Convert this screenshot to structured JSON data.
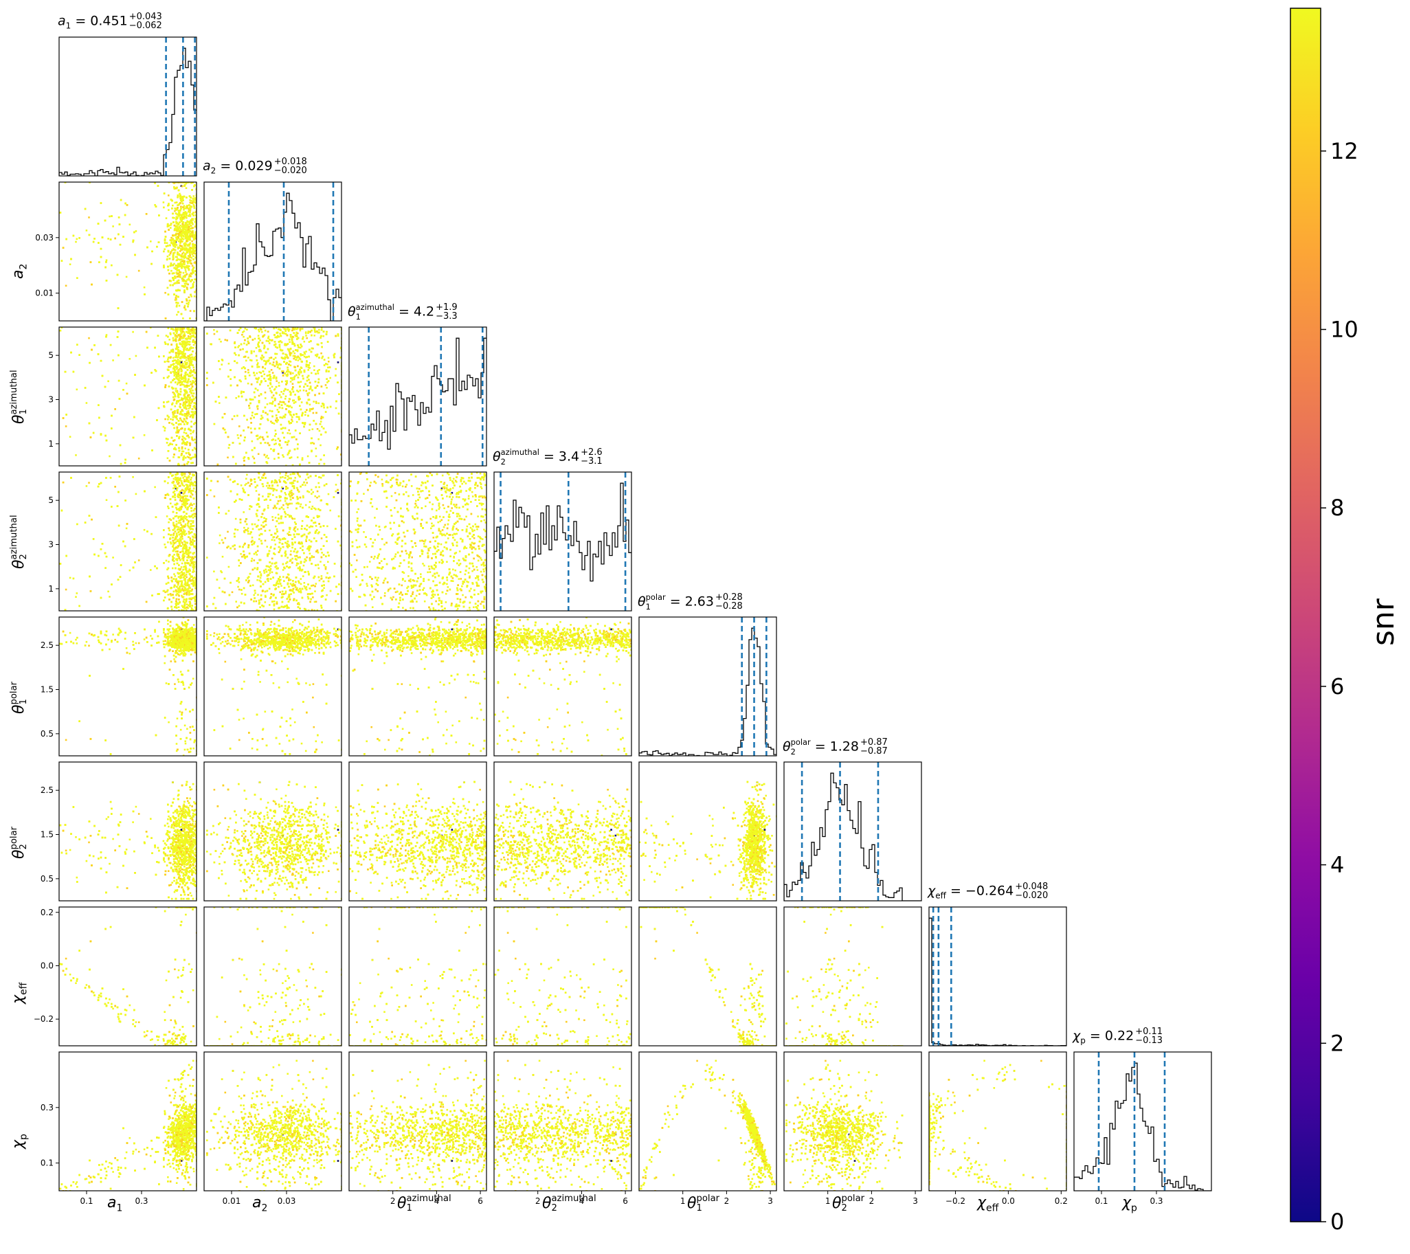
{
  "chart_data": {
    "type": "scatter",
    "layout": "corner-plot",
    "parameters": [
      {
        "key": "a1",
        "label": "a_1",
        "range": [
          0.0,
          0.5
        ],
        "ticks": [
          0.1,
          0.3
        ],
        "tick_labels": [
          "0.1",
          "0.3"
        ],
        "title": {
          "name": "a_1",
          "median": "0.451",
          "plus": "+0.043",
          "minus": "−0.062"
        },
        "quantiles": [
          0.389,
          0.451,
          0.494
        ]
      },
      {
        "key": "a2",
        "label": "a_2",
        "range": [
          0.0,
          0.05
        ],
        "ticks": [
          0.01,
          0.03
        ],
        "tick_labels": [
          "0.01",
          "0.03"
        ],
        "title": {
          "name": "a_2",
          "median": "0.029",
          "plus": "+0.018",
          "minus": "−0.020"
        },
        "quantiles": [
          0.009,
          0.029,
          0.047
        ]
      },
      {
        "key": "theta1_az",
        "label": "θ_1^azimuthal",
        "range": [
          0.0,
          6.28
        ],
        "ticks": [
          1,
          3,
          5
        ],
        "tick_labels": [
          "1",
          "3",
          "5"
        ],
        "x_ticks": [
          2,
          4,
          6
        ],
        "x_tick_labels": [
          "2",
          "4",
          "6"
        ],
        "title": {
          "name": "θ_1^azimuthal",
          "median": "4.2",
          "plus": "+1.9",
          "minus": "−3.3"
        },
        "quantiles": [
          0.9,
          4.2,
          6.1
        ]
      },
      {
        "key": "theta2_az",
        "label": "θ_2^azimuthal",
        "range": [
          0.0,
          6.28
        ],
        "ticks": [
          1,
          3,
          5
        ],
        "tick_labels": [
          "1",
          "3",
          "5"
        ],
        "x_ticks": [
          2,
          4,
          6
        ],
        "x_tick_labels": [
          "2",
          "4",
          "6"
        ],
        "title": {
          "name": "θ_2^azimuthal",
          "median": "3.4",
          "plus": "+2.6",
          "minus": "−3.1"
        },
        "quantiles": [
          0.3,
          3.4,
          6.0
        ]
      },
      {
        "key": "theta1_pol",
        "label": "θ_1^polar",
        "range": [
          0.0,
          3.14
        ],
        "ticks": [
          0.5,
          1.5,
          2.5
        ],
        "tick_labels": [
          "0.5",
          "1.5",
          "2.5"
        ],
        "x_ticks": [
          1,
          2,
          3
        ],
        "x_tick_labels": [
          "1",
          "2",
          "3"
        ],
        "title": {
          "name": "θ_1^polar",
          "median": "2.63",
          "plus": "+0.28",
          "minus": "−0.28"
        },
        "quantiles": [
          2.35,
          2.63,
          2.91
        ]
      },
      {
        "key": "theta2_pol",
        "label": "θ_2^polar",
        "range": [
          0.0,
          3.14
        ],
        "ticks": [
          0.5,
          1.5,
          2.5
        ],
        "tick_labels": [
          "0.5",
          "1.5",
          "2.5"
        ],
        "x_ticks": [
          1,
          2,
          3
        ],
        "x_tick_labels": [
          "1",
          "2",
          "3"
        ],
        "title": {
          "name": "θ_2^polar",
          "median": "1.28",
          "plus": "+0.87",
          "minus": "−0.87"
        },
        "quantiles": [
          0.41,
          1.28,
          2.15
        ]
      },
      {
        "key": "chi_eff",
        "label": "χ_eff",
        "range": [
          -0.3,
          0.22
        ],
        "ticks": [
          -0.2,
          0.0,
          0.2
        ],
        "tick_labels": [
          "−0.2",
          "0.0",
          "0.2"
        ],
        "title": {
          "name": "χ_eff",
          "median": "−0.264",
          "plus": "+0.048",
          "minus": "−0.020"
        },
        "quantiles": [
          -0.284,
          -0.264,
          -0.216
        ]
      },
      {
        "key": "chi_p",
        "label": "χ_p",
        "range": [
          0.0,
          0.5
        ],
        "ticks": [
          0.1,
          0.3
        ],
        "tick_labels": [
          "0.1",
          "0.3"
        ],
        "title": {
          "name": "χ_p",
          "median": "0.22",
          "plus": "+0.11",
          "minus": "−0.13"
        },
        "quantiles": [
          0.09,
          0.22,
          0.33
        ]
      }
    ],
    "colorbar": {
      "label": "snr",
      "range": [
        0,
        13.6
      ],
      "ticks": [
        0,
        2,
        4,
        6,
        8,
        10,
        12
      ],
      "tick_labels": [
        "0",
        "2",
        "4",
        "6",
        "8",
        "10",
        "12"
      ],
      "colormap": "plasma"
    },
    "colors": {
      "quantile_line": "#1f77b4",
      "histogram": "#000000",
      "point_main": "#f0f921",
      "point_secondary": "#fccd25",
      "point_rare": "#0d0887"
    }
  }
}
